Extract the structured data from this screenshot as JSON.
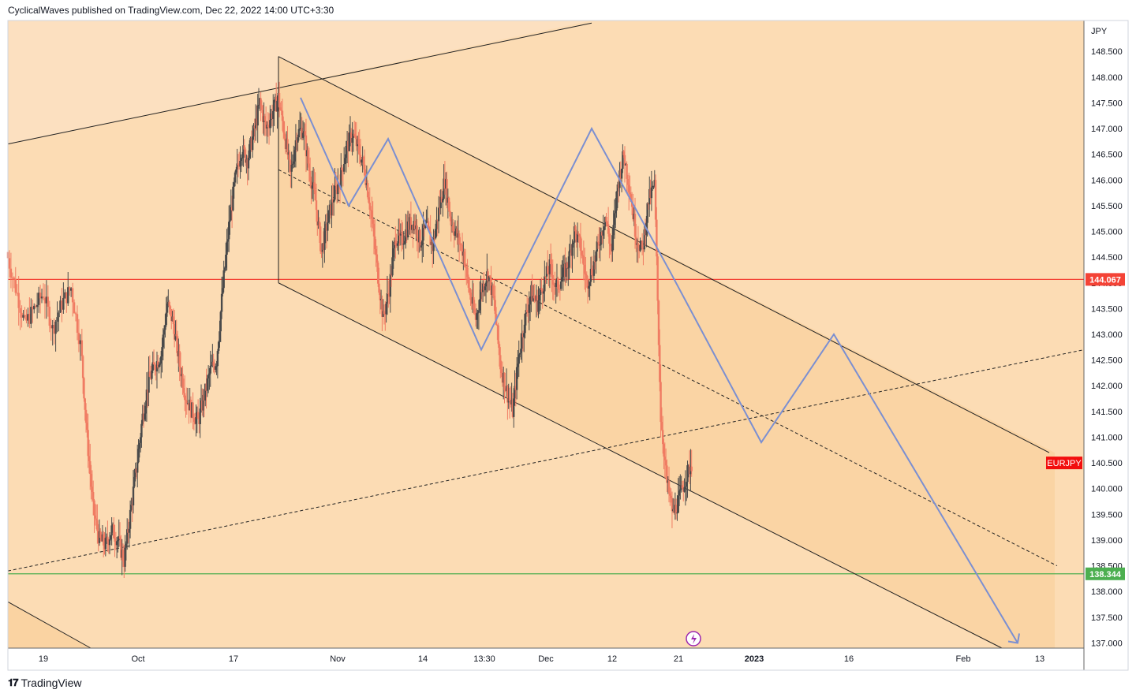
{
  "header": {
    "publish_text": "CyclicalWaves published on TradingView.com, Dec 22, 2022 14:00 UTC+3:30"
  },
  "footer": {
    "brand": "TradingView",
    "logo_icon": "tradingview-logo-icon"
  },
  "chart_data": {
    "type": "candlestick",
    "symbol": "EURJPY",
    "currency": "JPY",
    "colors": {
      "up": "#4a4a4a",
      "down": "#f07c63",
      "background": "#fce0c0",
      "channel_fill": "#f9cf9a",
      "resistance": "#f44336",
      "support": "#4caf50",
      "projection": "#7b8fd1"
    },
    "x_ticks": [
      "19",
      "Oct",
      "17",
      "Nov",
      "14",
      "13:30",
      "Dec",
      "12",
      "21",
      "2023",
      "16",
      "Feb",
      "13"
    ],
    "y_ticks": [
      "148.500",
      "148.000",
      "147.500",
      "147.000",
      "146.500",
      "146.000",
      "145.500",
      "145.000",
      "144.500",
      "144.000",
      "143.500",
      "143.000",
      "142.500",
      "142.000",
      "141.500",
      "141.000",
      "140.500",
      "140.000",
      "139.500",
      "139.000",
      "138.500",
      "138.000",
      "137.500",
      "137.000"
    ],
    "ylim": [
      136.9,
      149.1
    ],
    "levels": [
      {
        "label": "144.067",
        "value": 144.067,
        "color": "#f44336"
      },
      {
        "label": "138.344",
        "value": 138.344,
        "color": "#4caf50"
      }
    ],
    "last_price_label": {
      "text": "EURJPY",
      "value": 140.5,
      "color": "#f20e0e"
    },
    "price_path": [
      [
        0,
        144.6
      ],
      [
        3,
        143.9
      ],
      [
        6,
        143.2
      ],
      [
        9,
        143.5
      ],
      [
        12,
        143.8
      ],
      [
        15,
        143.1
      ],
      [
        18,
        143.6
      ],
      [
        21,
        143.9
      ],
      [
        24,
        142.8
      ],
      [
        26,
        141.0
      ],
      [
        28,
        139.6
      ],
      [
        30,
        139.0
      ],
      [
        32,
        138.9
      ],
      [
        34,
        139.2
      ],
      [
        36,
        139.0
      ],
      [
        38,
        138.6
      ],
      [
        40,
        139.5
      ],
      [
        42,
        140.4
      ],
      [
        44,
        141.4
      ],
      [
        46,
        142.1
      ],
      [
        48,
        142.4
      ],
      [
        50,
        142.6
      ],
      [
        52,
        143.6
      ],
      [
        54,
        143.2
      ],
      [
        56,
        142.4
      ],
      [
        58,
        141.8
      ],
      [
        60,
        141.5
      ],
      [
        62,
        141.3
      ],
      [
        64,
        141.8
      ],
      [
        66,
        142.3
      ],
      [
        68,
        142.5
      ],
      [
        70,
        143.9
      ],
      [
        72,
        145.1
      ],
      [
        74,
        146.0
      ],
      [
        76,
        146.6
      ],
      [
        78,
        146.4
      ],
      [
        80,
        146.9
      ],
      [
        82,
        147.5
      ],
      [
        84,
        147.0
      ],
      [
        86,
        147.3
      ],
      [
        88,
        147.6
      ],
      [
        90,
        146.9
      ],
      [
        92,
        146.1
      ],
      [
        94,
        146.9
      ],
      [
        96,
        147.0
      ],
      [
        98,
        146.2
      ],
      [
        100,
        145.6
      ],
      [
        102,
        144.6
      ],
      [
        104,
        145.2
      ],
      [
        106,
        145.7
      ],
      [
        108,
        146.0
      ],
      [
        110,
        146.6
      ],
      [
        112,
        146.9
      ],
      [
        114,
        146.6
      ],
      [
        116,
        146.2
      ],
      [
        118,
        145.4
      ],
      [
        120,
        144.3
      ],
      [
        122,
        143.3
      ],
      [
        124,
        143.9
      ],
      [
        126,
        144.9
      ],
      [
        128,
        144.8
      ],
      [
        130,
        145.1
      ],
      [
        132,
        145.2
      ],
      [
        134,
        144.8
      ],
      [
        136,
        145.1
      ],
      [
        138,
        144.7
      ],
      [
        140,
        145.4
      ],
      [
        142,
        146.0
      ],
      [
        144,
        145.2
      ],
      [
        146,
        144.9
      ],
      [
        148,
        144.6
      ],
      [
        150,
        143.8
      ],
      [
        152,
        143.3
      ],
      [
        154,
        143.9
      ],
      [
        156,
        144.2
      ],
      [
        158,
        143.6
      ],
      [
        160,
        142.4
      ],
      [
        162,
        141.9
      ],
      [
        164,
        141.5
      ],
      [
        166,
        142.6
      ],
      [
        168,
        143.3
      ],
      [
        170,
        143.8
      ],
      [
        172,
        143.6
      ],
      [
        174,
        144.0
      ],
      [
        176,
        144.3
      ],
      [
        178,
        143.9
      ],
      [
        180,
        144.1
      ],
      [
        182,
        144.4
      ],
      [
        184,
        145.0
      ],
      [
        186,
        144.7
      ],
      [
        188,
        144.0
      ],
      [
        190,
        144.3
      ],
      [
        192,
        144.8
      ],
      [
        194,
        145.3
      ],
      [
        196,
        144.6
      ],
      [
        198,
        145.9
      ],
      [
        200,
        146.5
      ],
      [
        202,
        145.8
      ],
      [
        204,
        144.9
      ],
      [
        206,
        144.6
      ],
      [
        208,
        145.6
      ],
      [
        210,
        145.9
      ],
      [
        212,
        141.4
      ],
      [
        214,
        140.1
      ],
      [
        216,
        139.5
      ],
      [
        218,
        139.8
      ],
      [
        220,
        140.2
      ],
      [
        222,
        140.5
      ]
    ],
    "channel_upper": {
      "from": [
        353,
        148.4
      ],
      "to": [
        1330,
        140.7
      ]
    },
    "channel_lower": {
      "from": [
        353,
        144.0
      ],
      "to": [
        1270,
        136.9
      ]
    },
    "channel_mid": {
      "from": [
        353,
        146.2
      ],
      "to": [
        1340,
        138.5
      ]
    },
    "trend_upper": {
      "from": [
        10,
        146.7
      ],
      "to": [
        750,
        149.05
      ]
    },
    "trend_dashed": {
      "from": [
        10,
        138.4
      ],
      "to": [
        1374,
        142.7
      ]
    },
    "trend_lower_left": {
      "from": [
        10,
        137.8
      ],
      "to": [
        115,
        136.9
      ]
    },
    "projection_path": [
      [
        381,
        147.6
      ],
      [
        442,
        145.5
      ],
      [
        492,
        146.8
      ],
      [
        610,
        142.7
      ],
      [
        750,
        147.0
      ],
      [
        850,
        144.2
      ],
      [
        965,
        140.9
      ],
      [
        1057,
        143.0
      ],
      [
        1290,
        137.0
      ]
    ]
  }
}
